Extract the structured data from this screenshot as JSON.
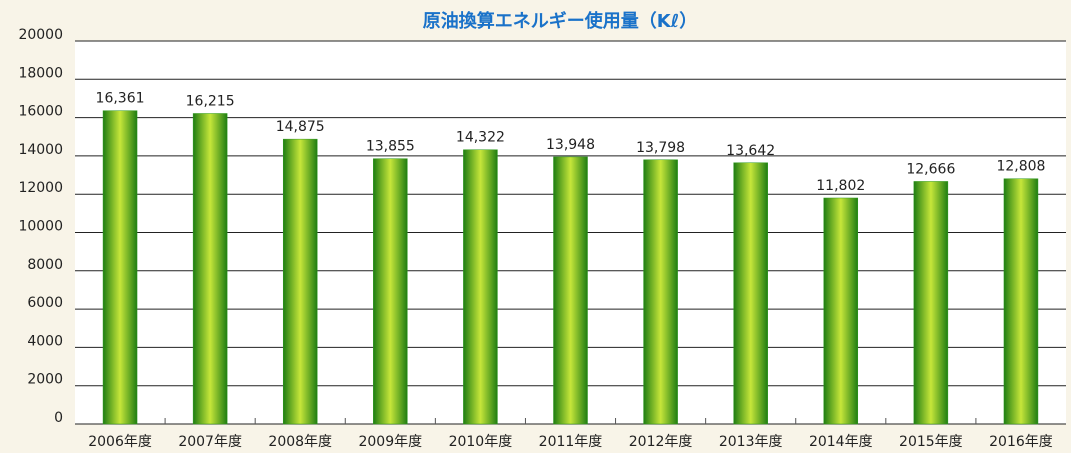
{
  "chart_data": {
    "type": "bar",
    "title": "原油換算エネルギー使用量（Kℓ）",
    "categories": [
      "2006年度",
      "2007年度",
      "2008年度",
      "2009年度",
      "2010年度",
      "2011年度",
      "2012年度",
      "2013年度",
      "2014年度",
      "2015年度",
      "2016年度"
    ],
    "values": [
      16361,
      16215,
      14875,
      13855,
      14322,
      13948,
      13798,
      13642,
      11802,
      12666,
      12808
    ],
    "value_labels": [
      "16,361",
      "16,215",
      "14,875",
      "13,855",
      "14,322",
      "13,948",
      "13,798",
      "13,642",
      "11,802",
      "12,666",
      "12,808"
    ],
    "color": "#2e9a1e",
    "ylim": [
      0,
      20000
    ],
    "yticks": [
      0,
      2000,
      4000,
      6000,
      8000,
      10000,
      12000,
      14000,
      16000,
      18000,
      20000
    ],
    "grid": true
  }
}
